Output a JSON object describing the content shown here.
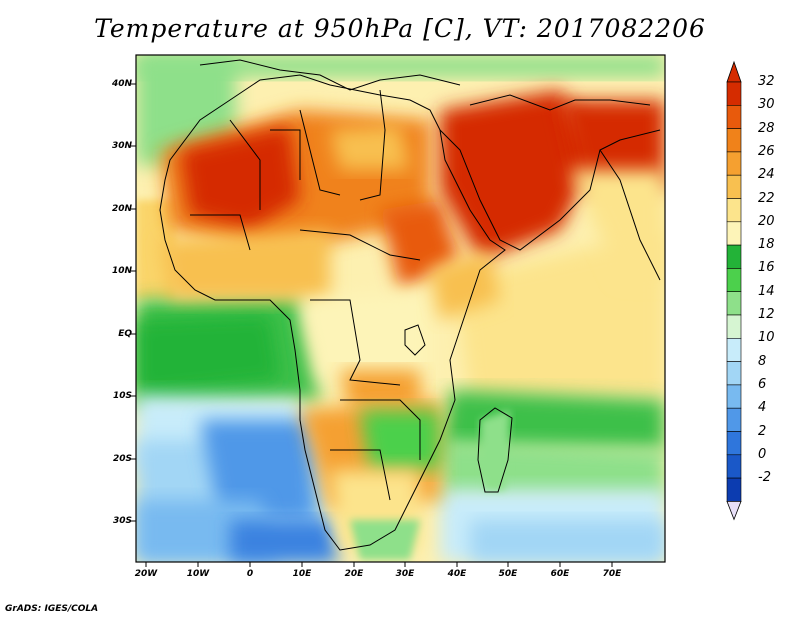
{
  "title": "Temperature at 950hPa [C], VT: 2017082206",
  "credit": "GrADS: IGES/COLA",
  "lat_labels": [
    "40N",
    "30N",
    "20N",
    "10N",
    "EQ",
    "10S",
    "20S",
    "30S"
  ],
  "lon_labels": [
    "20W",
    "10W",
    "0",
    "10E",
    "20E",
    "30E",
    "40E",
    "50E",
    "60E",
    "70E"
  ],
  "colorbar": {
    "labels": [
      "32",
      "30",
      "28",
      "26",
      "24",
      "22",
      "20",
      "18",
      "16",
      "14",
      "12",
      "10",
      "8",
      "6",
      "4",
      "2",
      "0",
      "-2"
    ],
    "colors": [
      "#d52c00",
      "#e85a0c",
      "#f0821a",
      "#f5a030",
      "#f8c050",
      "#fce48c",
      "#fdf4b8",
      "#23b338",
      "#4cd04c",
      "#8ee08a",
      "#d6f5d2",
      "#c8ecfa",
      "#a2d6f5",
      "#78baf0",
      "#5098e8",
      "#2f76dc",
      "#1a58c8",
      "#0c3cb0"
    ],
    "top_color": "#d52c00",
    "bottom_color": "#e8e0f8"
  },
  "map_data": {
    "variable": "Temperature",
    "level": "950hPa",
    "units": "C",
    "valid_time": "2017082206",
    "lon_range": [
      -25,
      80
    ],
    "lat_range": [
      -35,
      45
    ]
  }
}
